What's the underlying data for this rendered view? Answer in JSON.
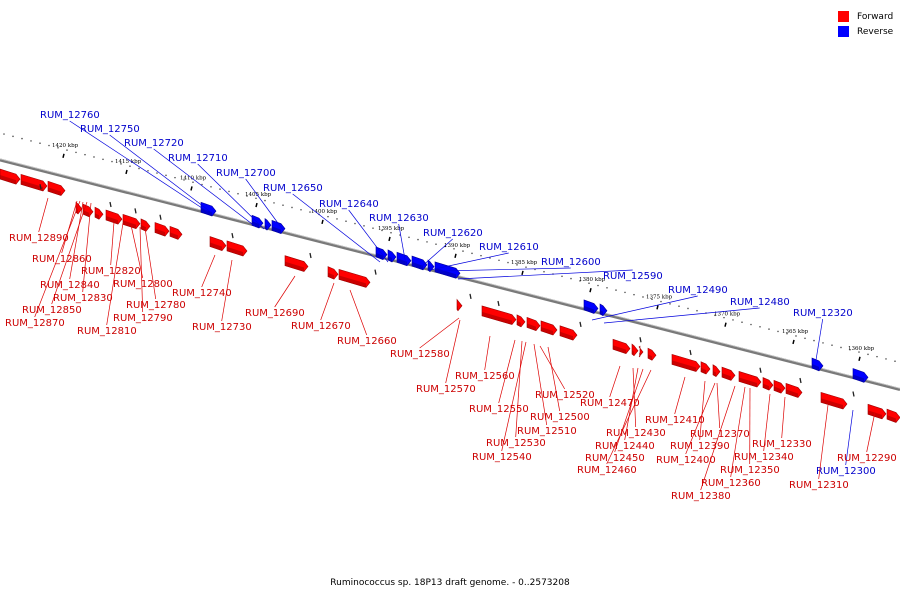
{
  "legend": [
    {
      "label": "Forward",
      "color": "#ff0000"
    },
    {
      "label": "Reverse",
      "color": "#0000ff"
    }
  ],
  "caption": "Ruminococcus sp. 18P13 draft genome. - 0..2573208",
  "colors": {
    "forward": "#ff0000",
    "reverse": "#0000ff",
    "backbone": "#808080"
  },
  "ticks": [
    "1420 kbp",
    "1415 kbp",
    "1410 kbp",
    "1405 kbp",
    "1400 kbp",
    "1395 kbp",
    "1390 kbp",
    "1385 kbp",
    "1380 kbp",
    "1375 kbp",
    "1370 kbp",
    "1365 kbp",
    "1360 kbp"
  ],
  "genes": [
    {
      "id": "RUM_12890",
      "strand": "forward"
    },
    {
      "id": "RUM_12860",
      "strand": "forward"
    },
    {
      "id": "RUM_12840",
      "strand": "forward"
    },
    {
      "id": "RUM_12830",
      "strand": "forward"
    },
    {
      "id": "RUM_12850",
      "strand": "forward"
    },
    {
      "id": "RUM_12870",
      "strand": "forward"
    },
    {
      "id": "RUM_12820",
      "strand": "forward"
    },
    {
      "id": "RUM_12800",
      "strand": "forward"
    },
    {
      "id": "RUM_12780",
      "strand": "forward"
    },
    {
      "id": "RUM_12790",
      "strand": "forward"
    },
    {
      "id": "RUM_12810",
      "strand": "forward"
    },
    {
      "id": "RUM_12760",
      "strand": "reverse"
    },
    {
      "id": "RUM_12750",
      "strand": "reverse"
    },
    {
      "id": "RUM_12720",
      "strand": "reverse"
    },
    {
      "id": "RUM_12710",
      "strand": "reverse"
    },
    {
      "id": "RUM_12700",
      "strand": "reverse"
    },
    {
      "id": "RUM_12740",
      "strand": "forward"
    },
    {
      "id": "RUM_12730",
      "strand": "forward"
    },
    {
      "id": "RUM_12650",
      "strand": "reverse"
    },
    {
      "id": "RUM_12690",
      "strand": "forward"
    },
    {
      "id": "RUM_12670",
      "strand": "forward"
    },
    {
      "id": "RUM_12660",
      "strand": "forward"
    },
    {
      "id": "RUM_12640",
      "strand": "reverse"
    },
    {
      "id": "RUM_12630",
      "strand": "reverse"
    },
    {
      "id": "RUM_12620",
      "strand": "reverse"
    },
    {
      "id": "RUM_12610",
      "strand": "reverse"
    },
    {
      "id": "RUM_12600",
      "strand": "reverse"
    },
    {
      "id": "RUM_12590",
      "strand": "reverse"
    },
    {
      "id": "RUM_12580",
      "strand": "forward"
    },
    {
      "id": "RUM_12570",
      "strand": "forward"
    },
    {
      "id": "RUM_12560",
      "strand": "forward"
    },
    {
      "id": "RUM_12550",
      "strand": "forward"
    },
    {
      "id": "RUM_12520",
      "strand": "forward"
    },
    {
      "id": "RUM_12500",
      "strand": "forward"
    },
    {
      "id": "RUM_12510",
      "strand": "forward"
    },
    {
      "id": "RUM_12530",
      "strand": "forward"
    },
    {
      "id": "RUM_12540",
      "strand": "forward"
    },
    {
      "id": "RUM_12490",
      "strand": "reverse"
    },
    {
      "id": "RUM_12480",
      "strand": "reverse"
    },
    {
      "id": "RUM_12470",
      "strand": "forward"
    },
    {
      "id": "RUM_12430",
      "strand": "forward"
    },
    {
      "id": "RUM_12440",
      "strand": "forward"
    },
    {
      "id": "RUM_12450",
      "strand": "forward"
    },
    {
      "id": "RUM_12460",
      "strand": "forward"
    },
    {
      "id": "RUM_12410",
      "strand": "forward"
    },
    {
      "id": "RUM_12390",
      "strand": "forward"
    },
    {
      "id": "RUM_12400",
      "strand": "forward"
    },
    {
      "id": "RUM_12370",
      "strand": "forward"
    },
    {
      "id": "RUM_12350",
      "strand": "forward"
    },
    {
      "id": "RUM_12360",
      "strand": "forward"
    },
    {
      "id": "RUM_12380",
      "strand": "forward"
    },
    {
      "id": "RUM_12330",
      "strand": "forward"
    },
    {
      "id": "RUM_12340",
      "strand": "forward"
    },
    {
      "id": "RUM_12320",
      "strand": "reverse"
    },
    {
      "id": "RUM_12300",
      "strand": "reverse"
    },
    {
      "id": "RUM_12310",
      "strand": "forward"
    },
    {
      "id": "RUM_12290",
      "strand": "forward"
    }
  ]
}
